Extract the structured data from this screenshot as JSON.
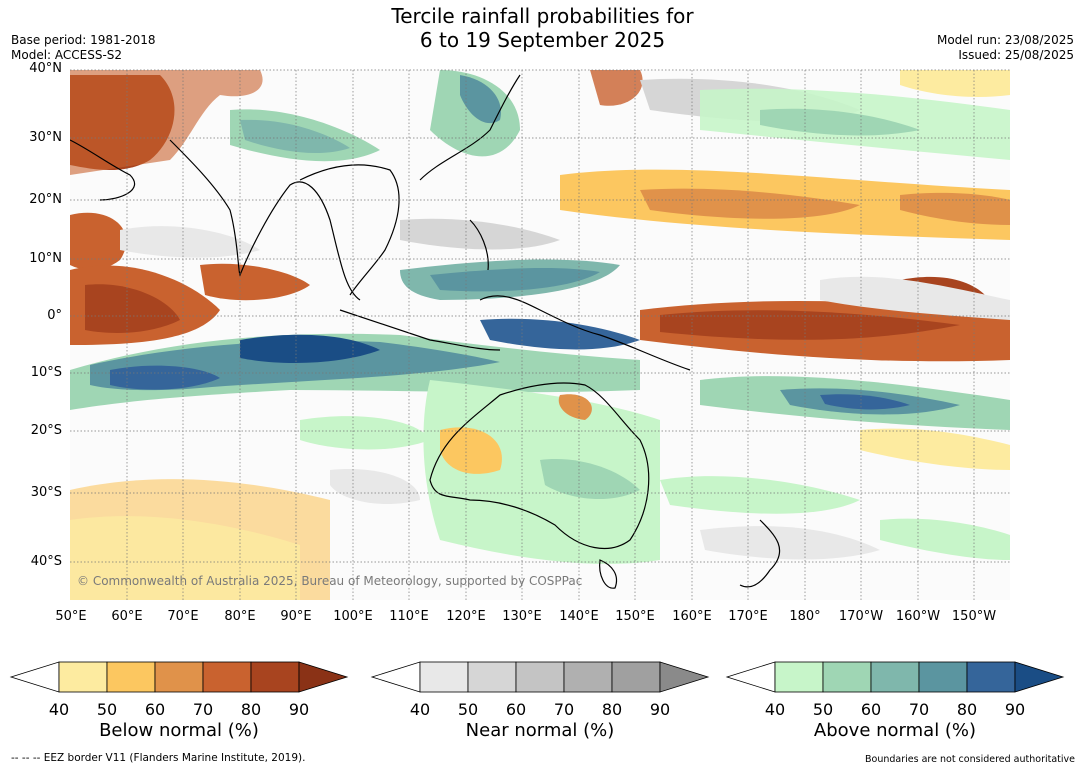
{
  "title_line1": "Tercile rainfall probabilities for",
  "title_line2": "6 to 19 September 2025",
  "base_period": "Base period: 1981-2018",
  "model": "Model: ACCESS-S2",
  "model_run": "Model run: 23/08/2025",
  "issued": "Issued: 25/08/2025",
  "map": {
    "lat_labels": [
      "40°N",
      "30°N",
      "20°N",
      "10°N",
      "0°",
      "10°S",
      "20°S",
      "30°S",
      "40°S"
    ],
    "lon_labels": [
      "50°E",
      "60°E",
      "70°E",
      "80°E",
      "90°E",
      "100°E",
      "110°E",
      "120°E",
      "130°E",
      "140°E",
      "150°E",
      "160°E",
      "170°E",
      "180°",
      "170°W",
      "160°W",
      "150°W"
    ],
    "lat_range": [
      -45,
      40
    ],
    "lon_range": [
      50,
      215
    ],
    "grid": true
  },
  "colorbars": [
    {
      "name": "Below normal (%)",
      "ticks": [
        "40",
        "50",
        "60",
        "70",
        "80",
        "90"
      ],
      "colors": [
        "#ffffff",
        "#fdeba0",
        "#fcc760",
        "#e0924a",
        "#c9622f",
        "#a8441f",
        "#8a3216"
      ]
    },
    {
      "name": "Near normal (%)",
      "ticks": [
        "40",
        "50",
        "60",
        "70",
        "80",
        "90"
      ],
      "colors": [
        "#ffffff",
        "#e8e8e8",
        "#d6d6d6",
        "#c4c4c4",
        "#b0b0b0",
        "#a0a0a0",
        "#8a8a8a"
      ]
    },
    {
      "name": "Above normal (%)",
      "ticks": [
        "40",
        "50",
        "60",
        "70",
        "80",
        "90"
      ],
      "colors": [
        "#ffffff",
        "#c7f5c9",
        "#9fd6b4",
        "#7fb7ac",
        "#5b95a0",
        "#35659a",
        "#1a4d85"
      ]
    }
  ],
  "copyright": "© Commonwealth of Australia 2025, Bureau of Meteorology, supported by COSPPac",
  "eez_note": "--  --  -- EEZ border V11 (Flanders Marine Institute, 2019).",
  "boundaries_note": "Boundaries are not considered authoritative"
}
